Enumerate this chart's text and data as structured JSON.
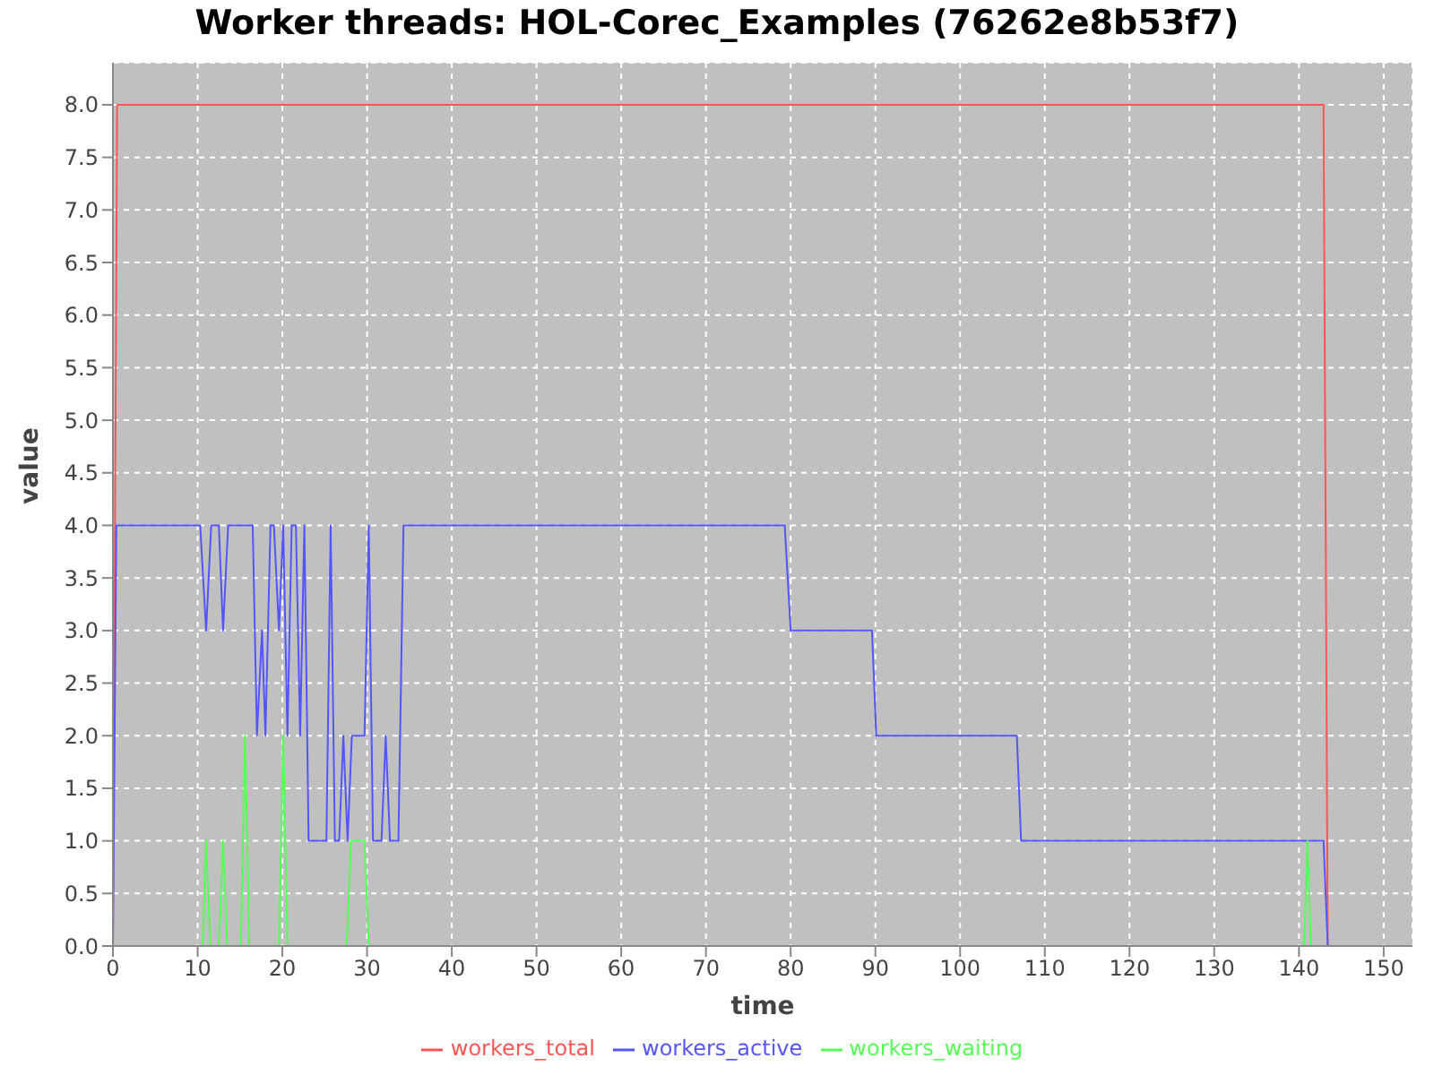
{
  "chart_data": {
    "type": "line",
    "title": "Worker threads: HOL-Corec_Examples (76262e8b53f7)",
    "xlabel": "time",
    "ylabel": "value",
    "xlim": [
      0,
      153.4
    ],
    "xticks": [
      0,
      10,
      20,
      30,
      40,
      50,
      60,
      70,
      80,
      90,
      100,
      110,
      120,
      130,
      140,
      150
    ],
    "ylim": [
      0,
      8.4
    ],
    "yticks": [
      {
        "value": 0,
        "label": "0.0"
      },
      {
        "value": 0.5,
        "label": "0.5"
      },
      {
        "value": 1,
        "label": "1.0"
      },
      {
        "value": 1.5,
        "label": "1.5"
      },
      {
        "value": 2,
        "label": "2.0"
      },
      {
        "value": 2.5,
        "label": "2.5"
      },
      {
        "value": 3,
        "label": "3.0"
      },
      {
        "value": 3.5,
        "label": "3.5"
      },
      {
        "value": 4,
        "label": "4.0"
      },
      {
        "value": 4.5,
        "label": "4.5"
      },
      {
        "value": 5,
        "label": "5.0"
      },
      {
        "value": 5.5,
        "label": "5.5"
      },
      {
        "value": 6,
        "label": "6.0"
      },
      {
        "value": 6.5,
        "label": "6.5"
      },
      {
        "value": 7,
        "label": "7.0"
      },
      {
        "value": 7.5,
        "label": "7.5"
      },
      {
        "value": 8,
        "label": "8.0"
      }
    ],
    "grid": true,
    "legend": "bottom",
    "marker": "none",
    "line_style": "solid",
    "series": [
      {
        "name": "workers_total",
        "color": "#ff5555",
        "x": [
          0,
          0.5,
          142.9,
          143.4,
          146
        ],
        "values": [
          0,
          8,
          8,
          0,
          0
        ]
      },
      {
        "name": "workers_active",
        "color": "#5555ff",
        "x": [
          0,
          0.4,
          10.3,
          11.0,
          11.6,
          12.5,
          13.0,
          13.6,
          16.5,
          17.0,
          17.6,
          18.0,
          18.6,
          19.0,
          19.6,
          20.1,
          20.6,
          21.1,
          21.6,
          22.1,
          22.6,
          23.1,
          25.2,
          25.7,
          26.2,
          26.7,
          27.2,
          27.7,
          28.2,
          29.7,
          30.2,
          30.7,
          31.7,
          32.2,
          32.7,
          33.7,
          34.3,
          79.3,
          80.0,
          89.6,
          90.1,
          106.7,
          107.2,
          142.9,
          143.4
        ],
        "values": [
          0,
          4,
          4,
          3,
          4,
          4,
          3,
          4,
          4,
          2,
          3,
          2,
          4,
          4,
          3,
          4,
          2,
          4,
          4,
          2,
          4,
          1,
          1,
          4,
          1,
          1,
          2,
          1,
          2,
          2,
          4,
          1,
          1,
          2,
          1,
          1,
          4,
          4,
          3,
          3,
          2,
          2,
          1,
          1,
          0
        ]
      },
      {
        "name": "workers_waiting",
        "color": "#55ff55",
        "x": [
          0,
          10.6,
          11.0,
          11.5,
          12.5,
          13.0,
          13.5,
          15.1,
          15.6,
          16.1,
          19.6,
          20.1,
          20.6,
          27.6,
          28.1,
          29.7,
          30.2,
          140.6,
          141.0,
          141.4,
          143.4
        ],
        "values": [
          0,
          0,
          1,
          0,
          0,
          1,
          0,
          0,
          2,
          0,
          0,
          2,
          0,
          0,
          1,
          1,
          0,
          0,
          1,
          0,
          0
        ]
      }
    ]
  }
}
